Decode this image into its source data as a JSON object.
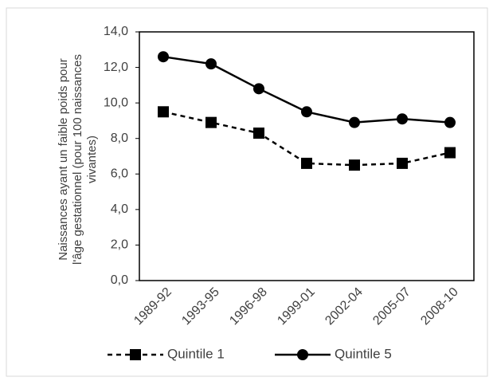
{
  "chart_data": {
    "type": "line",
    "ylabel": [
      "Naissances ayant un faible poids pour",
      "l'âge gestationnel (pour 100 naissances",
      "vivantes)"
    ],
    "categories": [
      "1989-92",
      "1993-95",
      "1996-98",
      "1999-01",
      "2002-04",
      "2005-07",
      "2008-10"
    ],
    "series": [
      {
        "name": "Quintile 1",
        "color": "#000000",
        "dashed": true,
        "marker": "square",
        "values": [
          9.5,
          8.9,
          8.3,
          6.6,
          6.5,
          6.6,
          7.2
        ]
      },
      {
        "name": "Quintile 5",
        "color": "#000000",
        "dashed": false,
        "marker": "circle",
        "values": [
          12.6,
          12.2,
          10.8,
          9.5,
          8.9,
          9.1,
          8.9
        ]
      }
    ],
    "ylim": [
      0,
      14
    ],
    "yticks": [
      {
        "value": 0,
        "label": "0,0"
      },
      {
        "value": 2,
        "label": "2,0"
      },
      {
        "value": 4,
        "label": "4,0"
      },
      {
        "value": 6,
        "label": "6,0"
      },
      {
        "value": 8,
        "label": "8,0"
      },
      {
        "value": 10,
        "label": "10,0"
      },
      {
        "value": 12,
        "label": "12,0"
      },
      {
        "value": 14,
        "label": "14,0"
      }
    ],
    "legend": "bottom"
  }
}
